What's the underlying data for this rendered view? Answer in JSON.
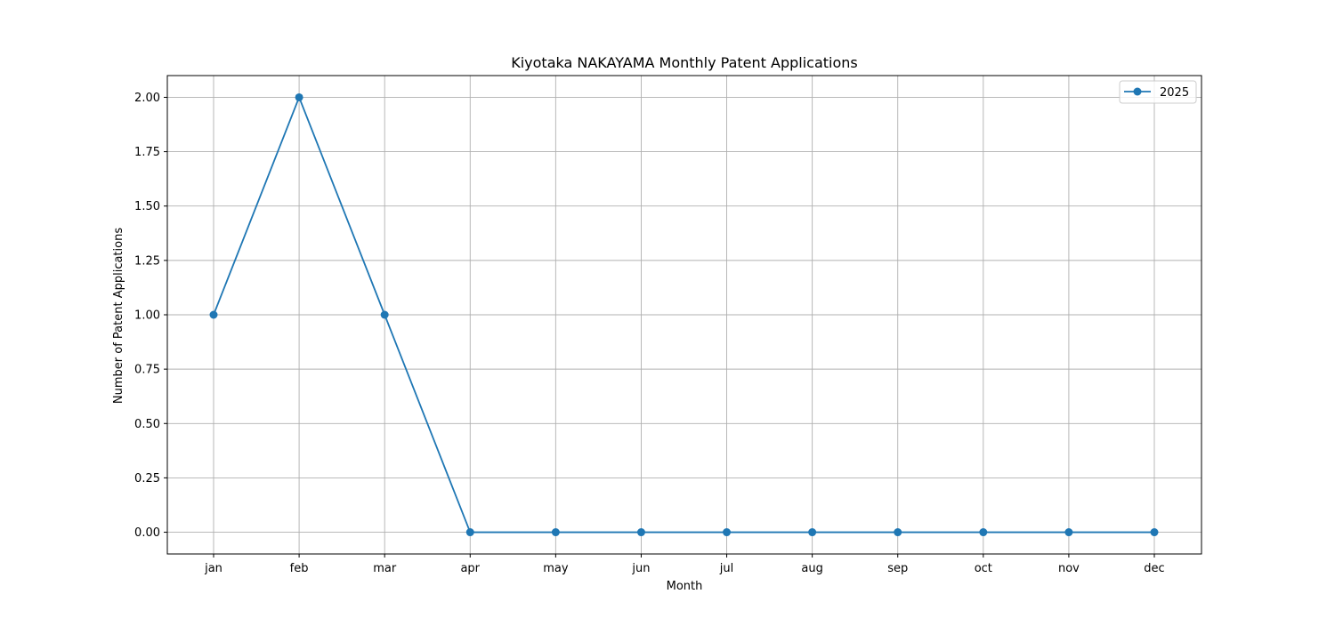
{
  "chart_data": {
    "type": "line",
    "title": "Kiyotaka NAKAYAMA Monthly Patent Applications",
    "xlabel": "Month",
    "ylabel": "Number of Patent Applications",
    "categories": [
      "jan",
      "feb",
      "mar",
      "apr",
      "may",
      "jun",
      "jul",
      "aug",
      "sep",
      "oct",
      "nov",
      "dec"
    ],
    "series": [
      {
        "name": "2025",
        "values": [
          1,
          2,
          1,
          0,
          0,
          0,
          0,
          0,
          0,
          0,
          0,
          0
        ],
        "color": "#1f77b4",
        "marker": "circle"
      }
    ],
    "ylim": [
      -0.1,
      2.1
    ],
    "yticks": [
      0.0,
      0.25,
      0.5,
      0.75,
      1.0,
      1.25,
      1.5,
      1.75,
      2.0
    ],
    "ytick_labels": [
      "0.00",
      "0.25",
      "0.50",
      "0.75",
      "1.00",
      "1.25",
      "1.50",
      "1.75",
      "2.00"
    ],
    "grid": true,
    "legend_position": "top-right",
    "colors": {
      "grid": "#b0b0b0",
      "axis": "#000000",
      "background": "#ffffff"
    }
  }
}
